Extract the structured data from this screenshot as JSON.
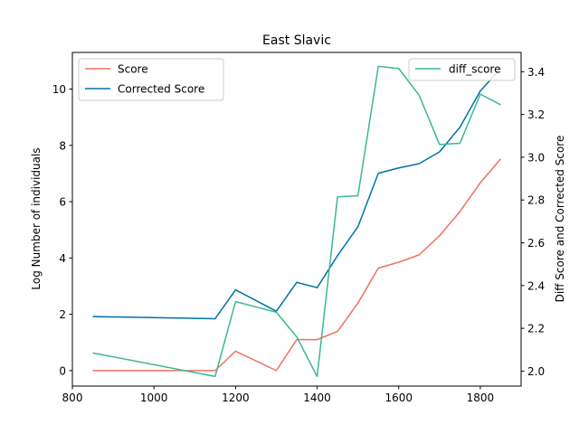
{
  "chart_data": {
    "type": "line",
    "title": "East Slavic",
    "xlabel": "",
    "ylabel": "Log Number of individuals",
    "y2label": "Diff Score and Corrected Score",
    "xlim": [
      800,
      1900
    ],
    "ylim": [
      -0.55,
      11.3
    ],
    "y2lim": [
      1.93,
      3.49
    ],
    "xticks": [
      800,
      1000,
      1200,
      1400,
      1600,
      1800
    ],
    "yticks": [
      0,
      2,
      4,
      6,
      8,
      10
    ],
    "y2ticks": [
      2.0,
      2.2,
      2.4,
      2.6,
      2.8,
      3.0,
      3.2,
      3.4
    ],
    "y2tick_labels": [
      "2.0",
      "2.2",
      "2.4",
      "2.6",
      "2.8",
      "3.0",
      "3.2",
      "3.4"
    ],
    "x": [
      850,
      1150,
      1200,
      1300,
      1350,
      1400,
      1450,
      1500,
      1550,
      1600,
      1650,
      1700,
      1750,
      1800,
      1850
    ],
    "series": [
      {
        "name": "Score",
        "axis": "left",
        "color": "#f07060",
        "values": [
          0.0,
          0.0,
          0.69,
          0.0,
          1.1,
          1.1,
          1.39,
          2.4,
          3.64,
          3.85,
          4.11,
          4.79,
          5.65,
          6.67,
          7.52
        ]
      },
      {
        "name": "Corrected Score",
        "axis": "right",
        "color": "#0072a8",
        "values": [
          2.255,
          2.245,
          2.38,
          2.28,
          2.415,
          2.39,
          2.54,
          2.675,
          2.925,
          2.95,
          2.97,
          3.025,
          3.14,
          3.31,
          3.415
        ]
      },
      {
        "name": "diff_score",
        "axis": "right",
        "color": "#3cb890",
        "values": [
          2.085,
          1.975,
          2.325,
          2.275,
          2.16,
          1.975,
          2.815,
          2.82,
          3.425,
          3.415,
          3.29,
          3.06,
          3.065,
          3.295,
          3.245
        ]
      }
    ],
    "legend_left": [
      "Score",
      "Corrected Score"
    ],
    "legend_right": [
      "diff_score"
    ],
    "legend_left_placement": "upper-left",
    "legend_right_placement": "upper-right",
    "grid": false
  }
}
